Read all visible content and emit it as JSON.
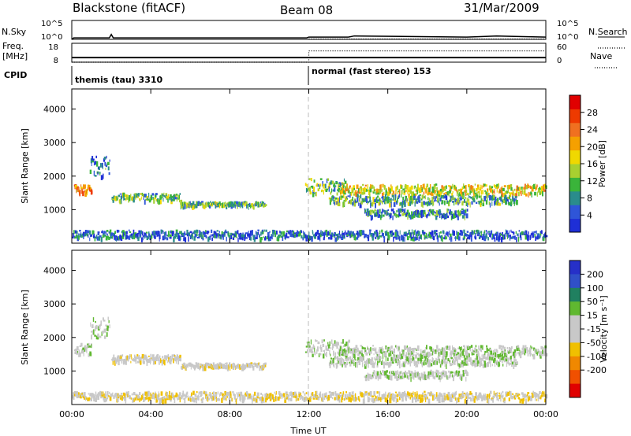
{
  "header": {
    "station": "Blackstone (fitACF)",
    "beam": "Beam 08",
    "date": "31/Mar/2009"
  },
  "side_labels": {
    "nsky": "N.Sky",
    "nsearch": "N.Search",
    "freq_line1": "Freq.",
    "freq_line2": "[MHz]",
    "nave": "Nave",
    "cpid": "CPID"
  },
  "cpid_segments": [
    {
      "start_hour": 0,
      "label": "themis (tau) 3310"
    },
    {
      "start_hour": 12,
      "label": "normal (fast stereo) 153"
    }
  ],
  "colors": {
    "power_scale": [
      "#1e2fd6",
      "#2f55d8",
      "#2a8c8c",
      "#3ab43a",
      "#a8d030",
      "#f0d800",
      "#f5a000",
      "#f07020",
      "#ee3a00",
      "#e00000"
    ],
    "velocity_scale": [
      "#2630c8",
      "#3050c8",
      "#208060",
      "#60b830",
      "#c8c8c8",
      "#c8c8c8",
      "#f0c000",
      "#f08800",
      "#f05000",
      "#e00000"
    ]
  },
  "chart_data": [
    {
      "type": "line",
      "panel": "nsky_nsearch",
      "y_tick_labels_left": [
        "10^5",
        "10^0"
      ],
      "y_tick_labels_right": [
        "10^5",
        "10^0"
      ],
      "series": [
        {
          "name": "N.Sky",
          "x": [
            0,
            0.1,
            1.9,
            2.0,
            2.1,
            6.0,
            11.9,
            12.0,
            14.0,
            14.3,
            20.0,
            21.5,
            24.0
          ],
          "y": [
            0.0,
            0.4,
            0.4,
            1.3,
            0.4,
            0.4,
            0.4,
            0.6,
            0.6,
            0.9,
            0.6,
            0.9,
            0.6
          ]
        },
        {
          "name": "N.Search",
          "x": [
            12,
            24
          ],
          "y": [
            0.1,
            0.1
          ]
        }
      ]
    },
    {
      "type": "line",
      "panel": "freq_nave",
      "y_tick_labels_left": [
        "18",
        "8"
      ],
      "y_tick_labels_right": [
        "60",
        "0"
      ],
      "series": [
        {
          "name": "Freq.",
          "x": [
            0,
            24
          ],
          "y": [
            10.4,
            10.4
          ]
        },
        {
          "name": "Nave",
          "x": [
            0,
            12,
            12,
            24
          ],
          "y": [
            0,
            0,
            36,
            36
          ]
        }
      ]
    },
    {
      "type": "heatmap",
      "panel": "power",
      "xlabel": "",
      "ylabel": "Slant Range [km]",
      "x_range": [
        0,
        24
      ],
      "y_range": [
        0,
        4600
      ],
      "y_ticks": [
        1000,
        2000,
        3000,
        4000
      ],
      "colorbar_label": "Power [dB]",
      "colorbar_ticks": [
        4,
        8,
        12,
        16,
        20,
        24,
        28
      ],
      "colorbar_range": [
        0,
        32
      ],
      "echo_bands": [
        {
          "x_start": 0.1,
          "x_end": 1.0,
          "y_center": 1620,
          "y_half_width": 110,
          "value": 22
        },
        {
          "x_start": 0.9,
          "x_end": 1.9,
          "y_center": 2300,
          "y_half_width": 300,
          "value": 6
        },
        {
          "x_start": 2.0,
          "x_end": 5.5,
          "y_center": 1370,
          "y_half_width": 110,
          "value": 12
        },
        {
          "x_start": 5.5,
          "x_end": 9.8,
          "y_center": 1170,
          "y_half_width": 60,
          "value": 11
        },
        {
          "x_start": 11.8,
          "x_end": 14.0,
          "y_center": 1700,
          "y_half_width": 220,
          "value": 12
        },
        {
          "x_start": 13.5,
          "x_end": 24.0,
          "y_center": 1600,
          "y_half_width": 150,
          "value": 17
        },
        {
          "x_start": 13.0,
          "x_end": 22.5,
          "y_center": 1300,
          "y_half_width": 130,
          "value": 10
        },
        {
          "x_start": 14.8,
          "x_end": 20.0,
          "y_center": 900,
          "y_half_width": 110,
          "value": 7
        },
        {
          "x_start": 0.0,
          "x_end": 24.0,
          "y_center": 260,
          "y_half_width": 120,
          "value": 5
        }
      ]
    },
    {
      "type": "heatmap",
      "panel": "velocity",
      "xlabel": "Time UT",
      "ylabel": "Slant Range [km]",
      "x_range": [
        0,
        24
      ],
      "y_range": [
        0,
        4600
      ],
      "x_ticks": [
        0,
        4,
        8,
        12,
        16,
        20,
        24
      ],
      "x_tick_labels": [
        "00:00",
        "04:00",
        "08:00",
        "12:00",
        "16:00",
        "20:00",
        "00:00"
      ],
      "y_ticks": [
        1000,
        2000,
        3000,
        4000
      ],
      "colorbar_label": "Velocity [m s⁻¹]",
      "colorbar_tick_labels": [
        "200",
        "100",
        "50",
        "15",
        "-15",
        "-50",
        "-100",
        "-200"
      ],
      "echo_bands": [
        {
          "x_start": 0.1,
          "x_end": 1.0,
          "y_center": 1650,
          "y_half_width": 160,
          "value": 0
        },
        {
          "x_start": 0.9,
          "x_end": 1.9,
          "y_center": 2300,
          "y_half_width": 300,
          "value": 0
        },
        {
          "x_start": 2.0,
          "x_end": 5.5,
          "y_center": 1370,
          "y_half_width": 110,
          "value": -30
        },
        {
          "x_start": 5.5,
          "x_end": 9.8,
          "y_center": 1170,
          "y_half_width": 60,
          "value": -30
        },
        {
          "x_start": 11.8,
          "x_end": 14.0,
          "y_center": 1700,
          "y_half_width": 220,
          "value": 0
        },
        {
          "x_start": 13.5,
          "x_end": 24.0,
          "y_center": 1600,
          "y_half_width": 150,
          "value": 0
        },
        {
          "x_start": 13.0,
          "x_end": 22.5,
          "y_center": 1300,
          "y_half_width": 130,
          "value": 0
        },
        {
          "x_start": 14.8,
          "x_end": 20.0,
          "y_center": 900,
          "y_half_width": 110,
          "value": 0
        },
        {
          "x_start": 0.0,
          "x_end": 24.0,
          "y_center": 260,
          "y_half_width": 120,
          "value": -40
        }
      ]
    }
  ]
}
